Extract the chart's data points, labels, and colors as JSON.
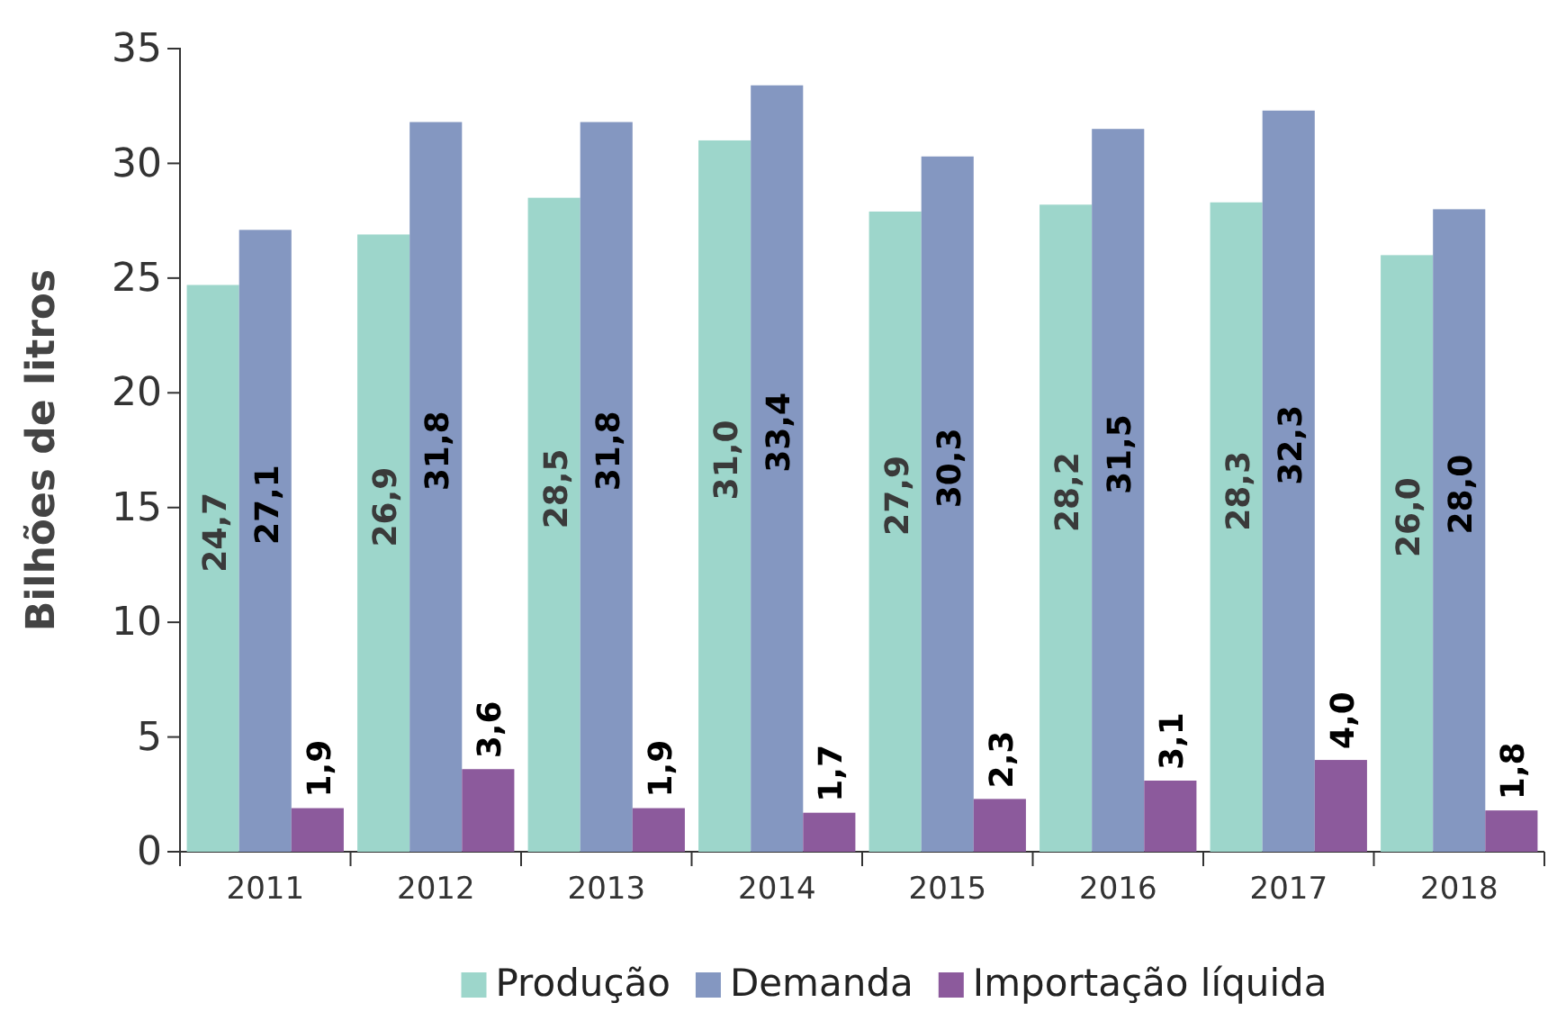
{
  "chart_data": {
    "type": "bar",
    "ylabel": "Bilhões de litros",
    "categories": [
      "2011",
      "2012",
      "2013",
      "2014",
      "2015",
      "2016",
      "2017",
      "2018"
    ],
    "series": [
      {
        "name": "Produção",
        "color": "#9dd6cb",
        "values": [
          24.7,
          26.9,
          28.5,
          31.0,
          27.9,
          28.2,
          28.3,
          26.0
        ],
        "value_labels": [
          "24,7",
          "26,9",
          "28,5",
          "31,0",
          "27,9",
          "28,2",
          "28,3",
          "26,0"
        ]
      },
      {
        "name": "Demanda",
        "color": "#8497c1",
        "values": [
          27.1,
          31.8,
          31.8,
          33.4,
          30.3,
          31.5,
          32.3,
          28.0
        ],
        "value_labels": [
          "27,1",
          "31,8",
          "31,8",
          "33,4",
          "30,3",
          "31,5",
          "32,3",
          "28,0"
        ]
      },
      {
        "name": "Importação líquida",
        "color": "#8c5a9c",
        "values": [
          1.9,
          3.6,
          1.9,
          1.7,
          2.3,
          3.1,
          4.0,
          1.8
        ],
        "value_labels": [
          "1,9",
          "3,6",
          "1,9",
          "1,7",
          "2,3",
          "3,1",
          "4,0",
          "1,8"
        ]
      }
    ],
    "ylim": [
      0,
      35
    ],
    "yticks": [
      0,
      5,
      10,
      15,
      20,
      25,
      30,
      35
    ],
    "grid": false,
    "legend": "bottom"
  }
}
